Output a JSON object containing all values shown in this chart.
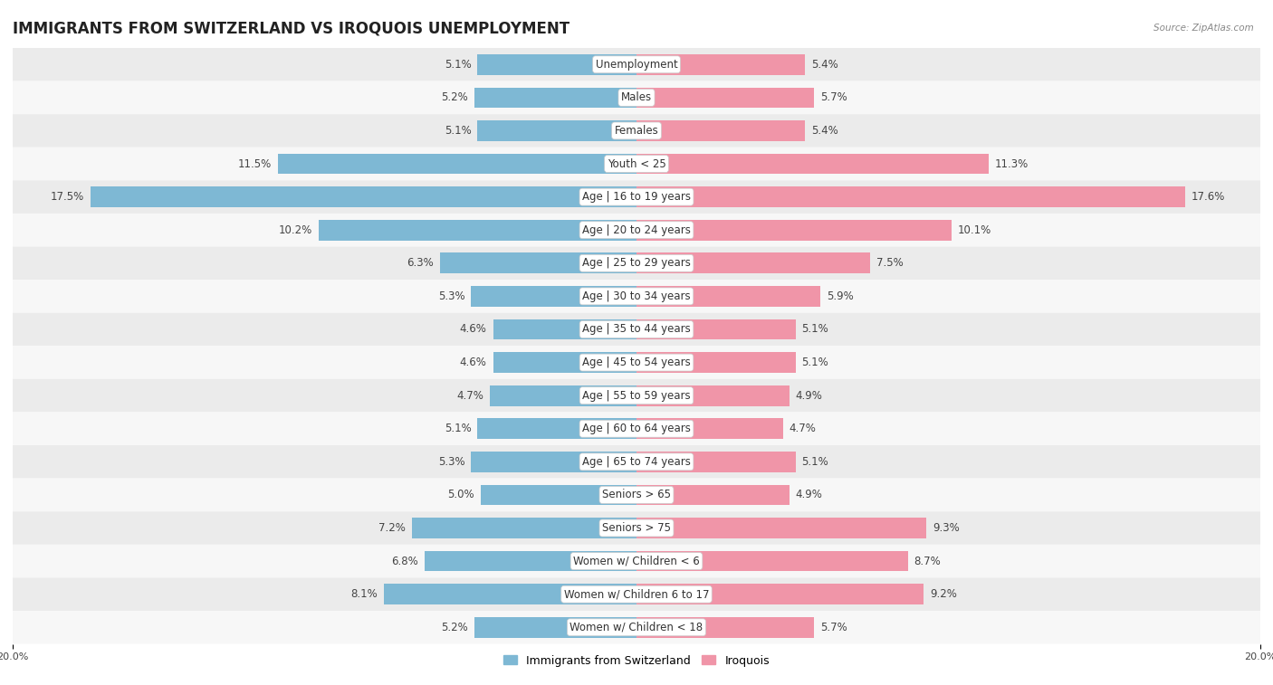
{
  "title": "IMMIGRANTS FROM SWITZERLAND VS IROQUOIS UNEMPLOYMENT",
  "source": "Source: ZipAtlas.com",
  "categories": [
    "Unemployment",
    "Males",
    "Females",
    "Youth < 25",
    "Age | 16 to 19 years",
    "Age | 20 to 24 years",
    "Age | 25 to 29 years",
    "Age | 30 to 34 years",
    "Age | 35 to 44 years",
    "Age | 45 to 54 years",
    "Age | 55 to 59 years",
    "Age | 60 to 64 years",
    "Age | 65 to 74 years",
    "Seniors > 65",
    "Seniors > 75",
    "Women w/ Children < 6",
    "Women w/ Children 6 to 17",
    "Women w/ Children < 18"
  ],
  "switzerland_values": [
    5.1,
    5.2,
    5.1,
    11.5,
    17.5,
    10.2,
    6.3,
    5.3,
    4.6,
    4.6,
    4.7,
    5.1,
    5.3,
    5.0,
    7.2,
    6.8,
    8.1,
    5.2
  ],
  "iroquois_values": [
    5.4,
    5.7,
    5.4,
    11.3,
    17.6,
    10.1,
    7.5,
    5.9,
    5.1,
    5.1,
    4.9,
    4.7,
    5.1,
    4.9,
    9.3,
    8.7,
    9.2,
    5.7
  ],
  "switzerland_color": "#7eb8d4",
  "iroquois_color": "#f095a8",
  "bar_height": 0.62,
  "xlim": 20.0,
  "row_bg_even": "#ebebeb",
  "row_bg_odd": "#f7f7f7",
  "title_fontsize": 12,
  "label_fontsize": 8.5,
  "value_fontsize": 8.5,
  "tick_fontsize": 8,
  "legend_switzerland": "Immigrants from Switzerland",
  "legend_iroquois": "Iroquois",
  "axis_label_left": "20.0%",
  "axis_label_right": "20.0%"
}
